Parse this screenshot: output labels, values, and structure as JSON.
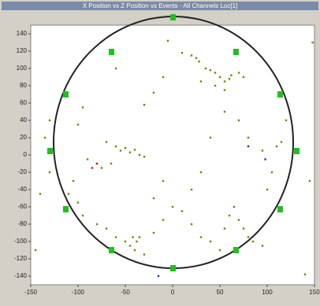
{
  "chart_data": {
    "type": "scatter",
    "title": "X Position vs Z Position vs Events - All Channels Loc[1]",
    "xlim": [
      -150,
      150
    ],
    "ylim": [
      -150,
      150
    ],
    "xticks": [
      -150,
      -100,
      -50,
      0,
      50,
      100,
      150
    ],
    "yticks": [
      -140,
      -120,
      -100,
      -80,
      -60,
      -40,
      -20,
      0,
      20,
      40,
      60,
      80,
      100,
      120,
      140
    ],
    "series": [
      {
        "color": "#857a08",
        "x": [
          -5,
          10,
          20,
          25,
          28,
          35,
          40,
          45,
          50,
          55,
          60,
          62,
          70,
          75,
          30,
          45,
          55,
          -30,
          -20,
          -10,
          -60,
          -95,
          -100,
          -70,
          -60,
          -55,
          -50,
          -45,
          -40,
          -35,
          -30,
          -65,
          -75,
          -90,
          -105,
          -110,
          -100,
          -95,
          -80,
          -70,
          -60,
          -50,
          -45,
          -40,
          -38,
          -35,
          -42,
          -30,
          -20,
          -10,
          0,
          10,
          20,
          30,
          40,
          50,
          55,
          60,
          65,
          70,
          75,
          80,
          85,
          95,
          100,
          105,
          110,
          115,
          120,
          95,
          80,
          70,
          55,
          40,
          30,
          20,
          -10,
          -20,
          -130,
          -140,
          -135,
          148,
          140,
          -130,
          -145,
          145
        ],
        "y": [
          132,
          118,
          115,
          112,
          108,
          100,
          98,
          95,
          90,
          85,
          88,
          92,
          95,
          90,
          85,
          80,
          75,
          58,
          72,
          90,
          100,
          55,
          35,
          15,
          10,
          5,
          8,
          3,
          6,
          0,
          -2,
          -10,
          -15,
          -5,
          -30,
          -45,
          -55,
          -70,
          -80,
          -85,
          -95,
          -100,
          -105,
          -110,
          -100,
          -95,
          -95,
          -115,
          -90,
          -75,
          -60,
          -65,
          -80,
          -95,
          -100,
          -110,
          -85,
          -70,
          -60,
          -75,
          -85,
          -95,
          -100,
          -105,
          -40,
          -20,
          10,
          15,
          40,
          5,
          20,
          40,
          50,
          20,
          -20,
          -40,
          -30,
          -50,
          -20,
          -45,
          20,
          130,
          -138,
          40,
          -110,
          -30
        ]
      },
      {
        "color": "#d01010",
        "x": [
          -85,
          -80
        ],
        "y": [
          -15,
          -10
        ]
      },
      {
        "color": "#1030d0",
        "x": [
          80,
          -15,
          98
        ],
        "y": [
          10,
          -140,
          -5
        ]
      }
    ]
  }
}
